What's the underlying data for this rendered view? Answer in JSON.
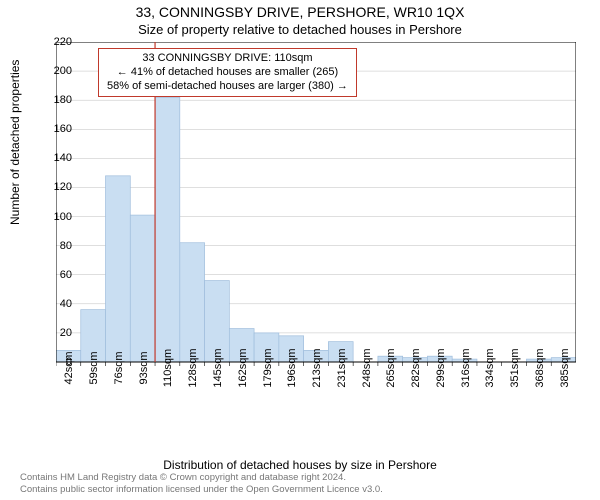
{
  "title": "33, CONNINGSBY DRIVE, PERSHORE, WR10 1QX",
  "subtitle": "Size of property relative to detached houses in Pershore",
  "ylabel": "Number of detached properties",
  "xlabel": "Distribution of detached houses by size in Pershore",
  "chart": {
    "type": "bar-histogram",
    "background_color": "#ffffff",
    "bar_fill": "#c9def2",
    "bar_stroke": "#9fbddc",
    "grid_color": "#bfbfbf",
    "axis_color": "#000000",
    "marker_color": "#c0392b",
    "border_box": true,
    "ylim": [
      0,
      220
    ],
    "ytick_step": 20,
    "xtick_labels": [
      "42sqm",
      "59sqm",
      "76sqm",
      "93sqm",
      "110sqm",
      "128sqm",
      "145sqm",
      "162sqm",
      "179sqm",
      "196sqm",
      "213sqm",
      "231sqm",
      "248sqm",
      "265sqm",
      "282sqm",
      "299sqm",
      "316sqm",
      "334sqm",
      "351sqm",
      "368sqm",
      "385sqm"
    ],
    "xtick_rotation": 90,
    "bar_values": [
      8,
      36,
      128,
      101,
      182,
      82,
      56,
      23,
      20,
      18,
      8,
      14,
      0,
      4,
      3,
      4,
      2,
      0,
      0,
      2,
      3
    ],
    "marker_index": 4,
    "bar_gap_ratio": 0.0
  },
  "callout": {
    "line1": "33 CONNINGSBY DRIVE: 110sqm",
    "line2": "← 41% of detached houses are smaller (265)",
    "line3": "58% of semi-detached houses are larger (380) →",
    "border_color": "#c0392b"
  },
  "footer": {
    "line1": "Contains HM Land Registry data © Crown copyright and database right 2024.",
    "line2": "Contains public sector information licensed under the Open Government Licence v3.0."
  }
}
